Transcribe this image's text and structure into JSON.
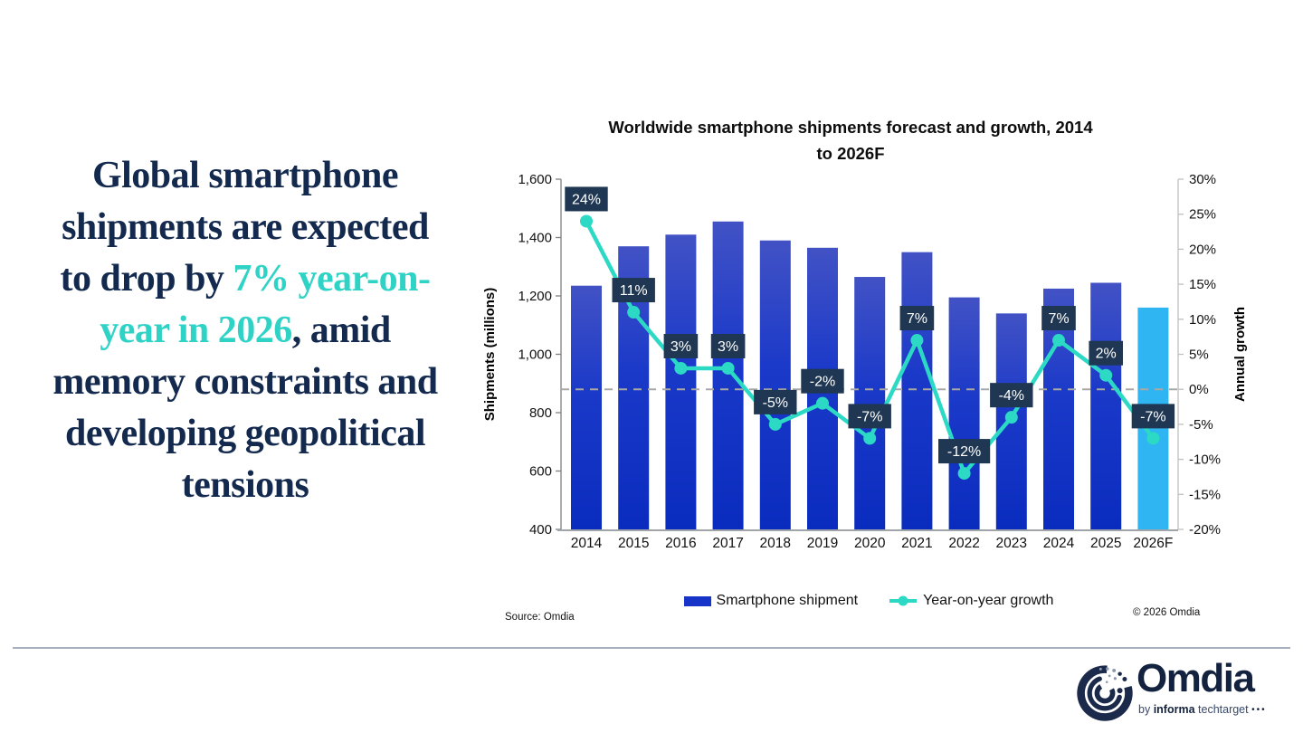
{
  "headline": {
    "part1": "Global smartphone shipments are expected to drop by ",
    "highlight": "7% year-on-year in 2026",
    "part2": ", amid memory constraints and developing geopolitical tensions"
  },
  "chart": {
    "title_line1": "Worldwide smartphone shipments forecast and growth, 2014",
    "title_line2": "to 2026F",
    "colors": {
      "bar_gradient_top": "#4252c5",
      "bar_gradient_mid": "#1a39c9",
      "bar_gradient_bottom": "#0a2cbe",
      "bar_forecast": "#2fb5f1",
      "line": "#2bd9c4",
      "label_bg": "#1f3752",
      "label_text": "#ffffff",
      "zero_line": "#a8a8a8",
      "axis_left": "#7f7f7f",
      "axis_right": "#bfbfbf",
      "axis_bottom": "#a0a5aa",
      "tick_text": "#111111"
    }
  },
  "chart_data": {
    "type": "bar+line",
    "title": "Worldwide smartphone shipments forecast and growth, 2014 to 2026F",
    "categories": [
      "2014",
      "2015",
      "2016",
      "2017",
      "2018",
      "2019",
      "2020",
      "2021",
      "2022",
      "2023",
      "2024",
      "2025",
      "2026F"
    ],
    "series": [
      {
        "name": "Smartphone shipment",
        "type": "bar",
        "axis": "left",
        "values": [
          1235,
          1370,
          1410,
          1455,
          1390,
          1365,
          1265,
          1350,
          1195,
          1140,
          1225,
          1245,
          1160
        ]
      },
      {
        "name": "Year-on-year growth",
        "type": "line",
        "axis": "right",
        "unit": "%",
        "values": [
          24,
          11,
          3,
          3,
          -5,
          -2,
          -7,
          7,
          -12,
          -4,
          7,
          2,
          -7
        ]
      }
    ],
    "left_axis": {
      "title": "Shipments (millions)",
      "min": 400,
      "max": 1600,
      "ticks": [
        400,
        600,
        800,
        1000,
        1200,
        1400,
        1600
      ]
    },
    "right_axis": {
      "title": "Annual growth",
      "min": -20,
      "max": 30,
      "ticks": [
        -20,
        -15,
        -10,
        -5,
        0,
        5,
        10,
        15,
        20,
        25,
        30
      ]
    },
    "zero_reference_line": true,
    "forecast_category": "2026F",
    "grid": false,
    "legend_position": "bottom"
  },
  "legend": {
    "items": [
      {
        "label": "Smartphone shipment",
        "swatch": "bar"
      },
      {
        "label": "Year-on-year growth",
        "swatch": "line"
      }
    ]
  },
  "source": "Source: Omdia",
  "copyright": "© 2026 Omdia",
  "logo": {
    "name": "Omdia",
    "byline_prefix": "by",
    "byline_bold": "informa",
    "byline_suffix": "techtarget",
    "dots": "•••",
    "navy": "#1b2a4a",
    "gray": "#93a0b4"
  }
}
